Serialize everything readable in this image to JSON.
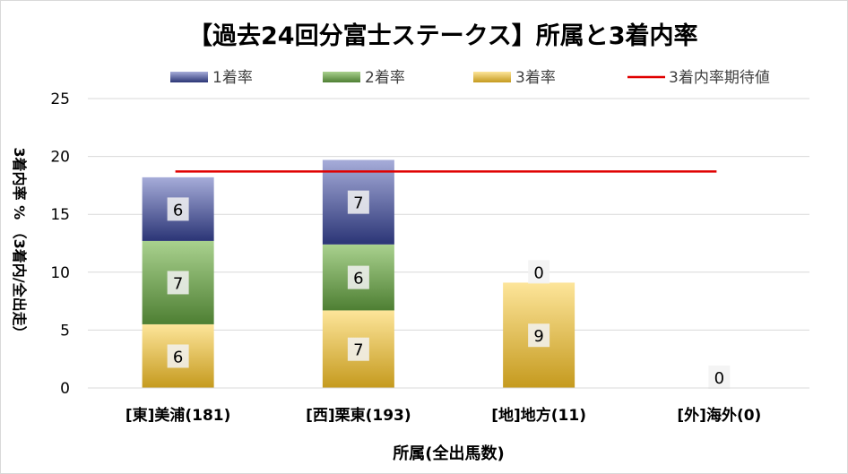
{
  "chart_data": {
    "type": "bar",
    "stacked": true,
    "title": "【過去24回分富士ステークス】所属と3着内率",
    "xlabel": "所属(全出馬数)",
    "ylabel": "3着内率 % （3着内/全出走）",
    "categories": [
      "[東]美浦(181)",
      "[西]栗東(193)",
      "[地]地方(11)",
      "[外]海外(0)"
    ],
    "ylim": [
      0,
      25
    ],
    "yticks": [
      0,
      5,
      10,
      15,
      20,
      25
    ],
    "grid": true,
    "legend_position": "top",
    "series": [
      {
        "name": "3着率",
        "values": [
          5.5,
          6.7,
          9.1,
          0
        ],
        "counts": [
          "6",
          "7",
          "9",
          "0"
        ],
        "color_top": "#fde59a",
        "color_bottom": "#c59a1e"
      },
      {
        "name": "2着率",
        "values": [
          7.2,
          5.7,
          0,
          0
        ],
        "counts": [
          "7",
          "6",
          "",
          ""
        ],
        "color_top": "#a9d18e",
        "color_bottom": "#4e7f33"
      },
      {
        "name": "1着率",
        "values": [
          5.5,
          7.3,
          0,
          0
        ],
        "counts": [
          "6",
          "7",
          "0",
          ""
        ],
        "color_top": "#a6acd9",
        "color_bottom": "#2b3576"
      }
    ],
    "expected_line": {
      "name": "3着内率期待値",
      "value": 18.7,
      "color": "#e00000"
    },
    "legend_order": [
      "1着率",
      "2着率",
      "3着率",
      "3着内率期待値"
    ]
  }
}
